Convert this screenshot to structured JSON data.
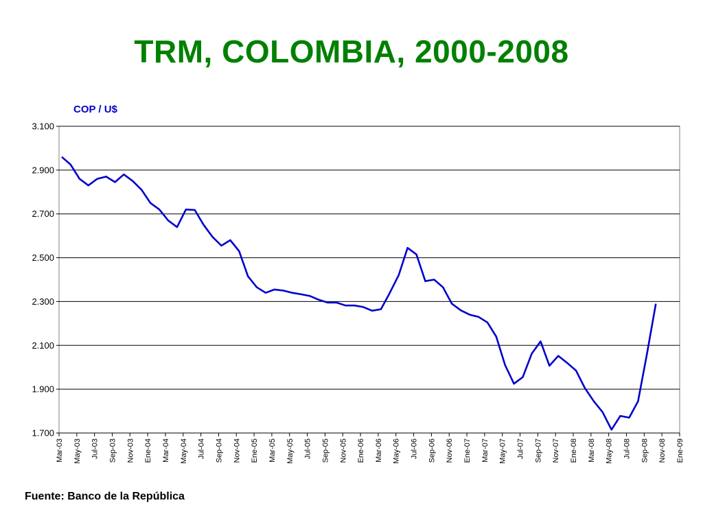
{
  "page": {
    "title": "TRM, COLOMBIA, 2000-2008",
    "source": "Fuente: Banco de la República"
  },
  "colors": {
    "title": "#008000",
    "series": "#0000cc",
    "ylabel": "#0000cc",
    "grid": "#000000"
  },
  "chart_data": {
    "type": "line",
    "title": "TRM, COLOMBIA, 2000-2008",
    "ylabel": "COP / U$",
    "xlabel": "",
    "ylim": [
      1700,
      3100
    ],
    "yticks": [
      1700,
      1900,
      2100,
      2300,
      2500,
      2700,
      2900,
      3100
    ],
    "ytick_labels": [
      "1.700",
      "1.900",
      "2.100",
      "2.300",
      "2.500",
      "2.700",
      "2.900",
      "3.100"
    ],
    "grid": true,
    "x": [
      "Mar-03",
      "Abr-03",
      "May-03",
      "Jun-03",
      "Jul-03",
      "Ago-03",
      "Sep-03",
      "Oct-03",
      "Nov-03",
      "Dic-03",
      "Ene-04",
      "Feb-04",
      "Mar-04",
      "Abr-04",
      "May-04",
      "Jun-04",
      "Jul-04",
      "Ago-04",
      "Sep-04",
      "Oct-04",
      "Nov-04",
      "Dic-04",
      "Ene-05",
      "Feb-05",
      "Mar-05",
      "Abr-05",
      "May-05",
      "Jun-05",
      "Jul-05",
      "Ago-05",
      "Sep-05",
      "Oct-05",
      "Nov-05",
      "Dic-05",
      "Ene-06",
      "Feb-06",
      "Mar-06",
      "Abr-06",
      "May-06",
      "Jun-06",
      "Jul-06",
      "Ago-06",
      "Sep-06",
      "Oct-06",
      "Nov-06",
      "Dic-06",
      "Ene-07",
      "Feb-07",
      "Mar-07",
      "Abr-07",
      "May-07",
      "Jun-07",
      "Jul-07",
      "Ago-07",
      "Sep-07",
      "Oct-07",
      "Nov-07",
      "Dic-07",
      "Ene-08",
      "Feb-08",
      "Mar-08",
      "Abr-08",
      "May-08",
      "Jun-08",
      "Jul-08",
      "Ago-08",
      "Sep-08",
      "Oct-08"
    ],
    "x_tick_labels": [
      "Mar-03",
      "May-03",
      "Jul-03",
      "Sep-03",
      "Nov-03",
      "Ene-04",
      "Mar-04",
      "May-04",
      "Jul-04",
      "Sep-04",
      "Nov-04",
      "Ene-05",
      "Mar-05",
      "May-05",
      "Jul-05",
      "Sep-05",
      "Nov-05",
      "Ene-06",
      "Mar-06",
      "May-06",
      "Jul-06",
      "Sep-06",
      "Nov-06",
      "Ene-07",
      "Mar-07",
      "May-07",
      "Jul-07",
      "Sep-07",
      "Nov-07",
      "Ene-08",
      "Mar-08",
      "May-08",
      "Jul-08",
      "Sep-08",
      "Nov-08",
      "Ene-09"
    ],
    "series": [
      {
        "values": [
          2960,
          2925,
          2860,
          2830,
          2860,
          2870,
          2845,
          2880,
          2850,
          2810,
          2750,
          2720,
          2670,
          2640,
          2720,
          2718,
          2650,
          2595,
          2555,
          2580,
          2530,
          2415,
          2365,
          2340,
          2355,
          2350,
          2340,
          2333,
          2325,
          2308,
          2295,
          2295,
          2282,
          2282,
          2275,
          2258,
          2265,
          2340,
          2420,
          2545,
          2515,
          2393,
          2400,
          2365,
          2290,
          2260,
          2240,
          2230,
          2205,
          2140,
          2010,
          1925,
          1955,
          2062,
          2118,
          2007,
          2052,
          2020,
          1985,
          1905,
          1845,
          1795,
          1715,
          1778,
          1770,
          1845,
          2060,
          2290
        ]
      }
    ]
  }
}
